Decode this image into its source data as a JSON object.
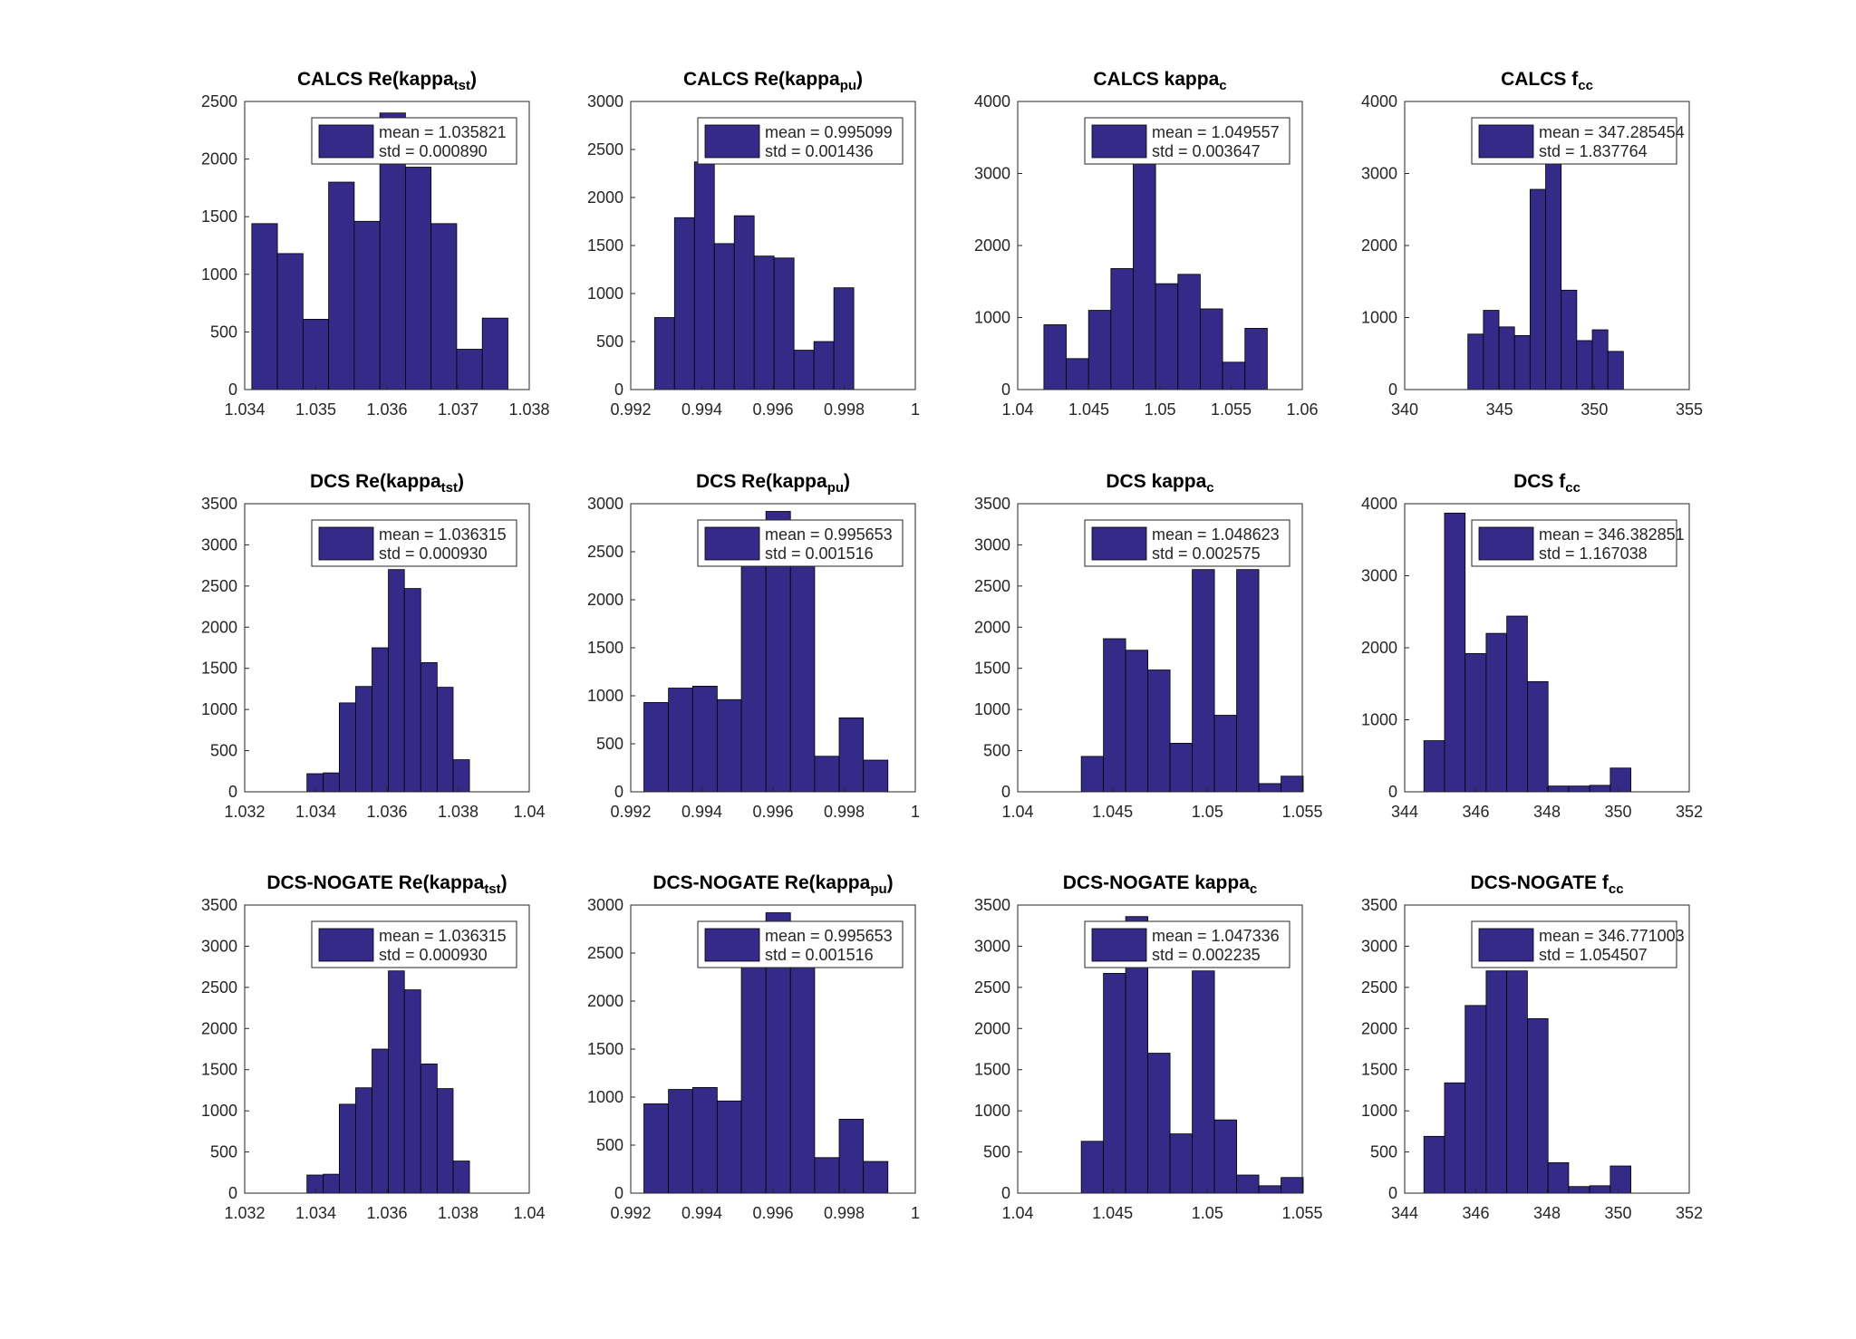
{
  "chart_data": [
    {
      "type": "histogram",
      "title": [
        "CALCS Re(kappa",
        "tst",
        ")"
      ],
      "legend": [
        "mean = 1.035821",
        "std = 0.000890"
      ],
      "color": "#352a87",
      "bins": [
        1.0341,
        1.03446,
        1.03482,
        1.03518,
        1.03554,
        1.0359,
        1.03626,
        1.03662,
        1.03698,
        1.03734,
        1.0377
      ],
      "values": [
        1440,
        1180,
        610,
        1800,
        1460,
        2400,
        1930,
        1440,
        350,
        620
      ],
      "xlim": [
        1.034,
        1.038
      ],
      "xticks": [
        1.034,
        1.035,
        1.036,
        1.037,
        1.038
      ],
      "ylim": [
        0,
        2500
      ],
      "yticks": [
        0,
        500,
        1000,
        1500,
        2000,
        2500
      ]
    },
    {
      "type": "histogram",
      "title": [
        "CALCS Re(kappa",
        "pu",
        ")"
      ],
      "legend": [
        "mean = 0.995099",
        "std = 0.001436"
      ],
      "color": "#352a87",
      "bins": [
        0.99267,
        0.99323,
        0.99379,
        0.99435,
        0.99491,
        0.99547,
        0.99603,
        0.99659,
        0.99715,
        0.99771,
        0.99827
      ],
      "values": [
        750,
        1790,
        2370,
        1520,
        1810,
        1390,
        1370,
        410,
        500,
        1060
      ],
      "xlim": [
        0.992,
        1
      ],
      "xticks": [
        0.992,
        0.994,
        0.996,
        0.998,
        1
      ],
      "ylim": [
        0,
        3000
      ],
      "yticks": [
        0,
        500,
        1000,
        1500,
        2000,
        2500,
        3000
      ]
    },
    {
      "type": "histogram",
      "title": [
        "CALCS kappa",
        "c"
      ],
      "legend": [
        "mean = 1.049557",
        "std = 0.003647"
      ],
      "color": "#352a87",
      "bins": [
        1.04184,
        1.04341,
        1.04498,
        1.04655,
        1.04812,
        1.04969,
        1.05126,
        1.05283,
        1.0544,
        1.05597,
        1.05754
      ],
      "values": [
        900,
        430,
        1100,
        1680,
        3150,
        1470,
        1600,
        1120,
        380,
        850
      ],
      "xlim": [
        1.04,
        1.06
      ],
      "xticks": [
        1.04,
        1.045,
        1.05,
        1.055,
        1.06
      ],
      "ylim": [
        0,
        4000
      ],
      "yticks": [
        0,
        1000,
        2000,
        3000,
        4000
      ]
    },
    {
      "type": "histogram",
      "title": [
        "CALCS f",
        "cc"
      ],
      "legend": [
        "mean = 347.285454",
        "std = 1.837764"
      ],
      "color": "#352a87",
      "bins": [
        343.33,
        344.15,
        344.97,
        345.79,
        346.61,
        347.43,
        348.25,
        349.07,
        349.89,
        350.71,
        351.53
      ],
      "values": [
        770,
        1100,
        870,
        750,
        2780,
        3200,
        1380,
        680,
        830,
        530
      ],
      "xlim": [
        340,
        355
      ],
      "xticks": [
        340,
        345,
        350,
        355
      ],
      "ylim": [
        0,
        4000
      ],
      "yticks": [
        0,
        1000,
        2000,
        3000,
        4000
      ]
    },
    {
      "type": "histogram",
      "title": [
        "DCS Re(kappa",
        "tst",
        ")"
      ],
      "legend": [
        "mean = 1.036315",
        "std = 0.000930"
      ],
      "color": "#352a87",
      "bins": [
        1.03375,
        1.03421,
        1.03466,
        1.03512,
        1.03558,
        1.03604,
        1.03649,
        1.03695,
        1.03741,
        1.03786,
        1.03832
      ],
      "values": [
        220,
        230,
        1080,
        1280,
        1750,
        2700,
        2470,
        1570,
        1270,
        390
      ],
      "xlim": [
        1.032,
        1.04
      ],
      "xticks": [
        1.032,
        1.034,
        1.036,
        1.038,
        1.04
      ],
      "ylim": [
        0,
        3500
      ],
      "yticks": [
        0,
        500,
        1000,
        1500,
        2000,
        2500,
        3000,
        3500
      ]
    },
    {
      "type": "histogram",
      "title": [
        "DCS Re(kappa",
        "pu",
        ")"
      ],
      "legend": [
        "mean = 0.995653",
        "std = 0.001516"
      ],
      "color": "#352a87",
      "bins": [
        0.99237,
        0.99306,
        0.99374,
        0.99443,
        0.99511,
        0.9958,
        0.99649,
        0.99717,
        0.99786,
        0.99854,
        0.99923
      ],
      "values": [
        930,
        1080,
        1100,
        960,
        2700,
        2920,
        2700,
        370,
        770,
        330
      ],
      "xlim": [
        0.992,
        1
      ],
      "xticks": [
        0.992,
        0.994,
        0.996,
        0.998,
        1
      ],
      "ylim": [
        0,
        3000
      ],
      "yticks": [
        0,
        500,
        1000,
        1500,
        2000,
        2500,
        3000
      ]
    },
    {
      "type": "histogram",
      "title": [
        "DCS kappa",
        "c"
      ],
      "legend": [
        "mean = 1.048623",
        "std = 0.002575"
      ],
      "color": "#352a87",
      "bins": [
        1.04335,
        1.04452,
        1.04569,
        1.04686,
        1.04803,
        1.0492,
        1.05037,
        1.05154,
        1.05271,
        1.05388,
        1.05505
      ],
      "values": [
        430,
        1860,
        1720,
        1480,
        590,
        2700,
        930,
        2700,
        100,
        190
      ],
      "xlim": [
        1.04,
        1.055
      ],
      "xticks": [
        1.04,
        1.045,
        1.05,
        1.055
      ],
      "ylim": [
        0,
        3500
      ],
      "yticks": [
        0,
        500,
        1000,
        1500,
        2000,
        2500,
        3000,
        3500
      ]
    },
    {
      "type": "histogram",
      "title": [
        "DCS f",
        "cc"
      ],
      "legend": [
        "mean = 346.382851",
        "std = 1.167038"
      ],
      "color": "#352a87",
      "bins": [
        344.54,
        345.12,
        345.7,
        346.29,
        346.87,
        347.45,
        348.03,
        348.61,
        349.2,
        349.78,
        350.36
      ],
      "values": [
        710,
        3870,
        1920,
        2200,
        2440,
        1530,
        80,
        80,
        90,
        330
      ],
      "xlim": [
        344,
        352
      ],
      "xticks": [
        344,
        346,
        348,
        350,
        352
      ],
      "ylim": [
        0,
        4000
      ],
      "yticks": [
        0,
        1000,
        2000,
        3000,
        4000
      ]
    },
    {
      "type": "histogram",
      "title": [
        "DCS-NOGATE Re(kappa",
        "tst",
        ")"
      ],
      "legend": [
        "mean = 1.036315",
        "std = 0.000930"
      ],
      "color": "#352a87",
      "bins": [
        1.03375,
        1.03421,
        1.03466,
        1.03512,
        1.03558,
        1.03604,
        1.03649,
        1.03695,
        1.03741,
        1.03786,
        1.03832
      ],
      "values": [
        220,
        230,
        1080,
        1280,
        1750,
        2700,
        2470,
        1570,
        1270,
        390
      ],
      "xlim": [
        1.032,
        1.04
      ],
      "xticks": [
        1.032,
        1.034,
        1.036,
        1.038,
        1.04
      ],
      "ylim": [
        0,
        3500
      ],
      "yticks": [
        0,
        500,
        1000,
        1500,
        2000,
        2500,
        3000,
        3500
      ]
    },
    {
      "type": "histogram",
      "title": [
        "DCS-NOGATE Re(kappa",
        "pu",
        ")"
      ],
      "legend": [
        "mean = 0.995653",
        "std = 0.001516"
      ],
      "color": "#352a87",
      "bins": [
        0.99237,
        0.99306,
        0.99374,
        0.99443,
        0.99511,
        0.9958,
        0.99649,
        0.99717,
        0.99786,
        0.99854,
        0.99923
      ],
      "values": [
        930,
        1080,
        1100,
        960,
        2700,
        2920,
        2700,
        370,
        770,
        330
      ],
      "xlim": [
        0.992,
        1
      ],
      "xticks": [
        0.992,
        0.994,
        0.996,
        0.998,
        1
      ],
      "ylim": [
        0,
        3000
      ],
      "yticks": [
        0,
        500,
        1000,
        1500,
        2000,
        2500,
        3000
      ]
    },
    {
      "type": "histogram",
      "title": [
        "DCS-NOGATE kappa",
        "c"
      ],
      "legend": [
        "mean = 1.047336",
        "std = 0.002235"
      ],
      "color": "#352a87",
      "bins": [
        1.04335,
        1.04452,
        1.04569,
        1.04686,
        1.04803,
        1.0492,
        1.05037,
        1.05154,
        1.05271,
        1.05388,
        1.05505
      ],
      "values": [
        630,
        2670,
        3360,
        1700,
        720,
        2700,
        890,
        220,
        90,
        190
      ],
      "xlim": [
        1.04,
        1.055
      ],
      "xticks": [
        1.04,
        1.045,
        1.05,
        1.055
      ],
      "ylim": [
        0,
        3500
      ],
      "yticks": [
        0,
        500,
        1000,
        1500,
        2000,
        2500,
        3000,
        3500
      ]
    },
    {
      "type": "histogram",
      "title": [
        "DCS-NOGATE f",
        "cc"
      ],
      "legend": [
        "mean = 346.771003",
        "std = 1.054507"
      ],
      "color": "#352a87",
      "bins": [
        344.54,
        345.12,
        345.7,
        346.29,
        346.87,
        347.45,
        348.03,
        348.61,
        349.2,
        349.78,
        350.36
      ],
      "values": [
        690,
        1340,
        2280,
        2700,
        2700,
        2120,
        370,
        80,
        90,
        330
      ],
      "xlim": [
        344,
        352
      ],
      "xticks": [
        344,
        346,
        348,
        350,
        352
      ],
      "ylim": [
        0,
        3500
      ],
      "yticks": [
        0,
        500,
        1000,
        1500,
        2000,
        2500,
        3000,
        3500
      ]
    }
  ]
}
